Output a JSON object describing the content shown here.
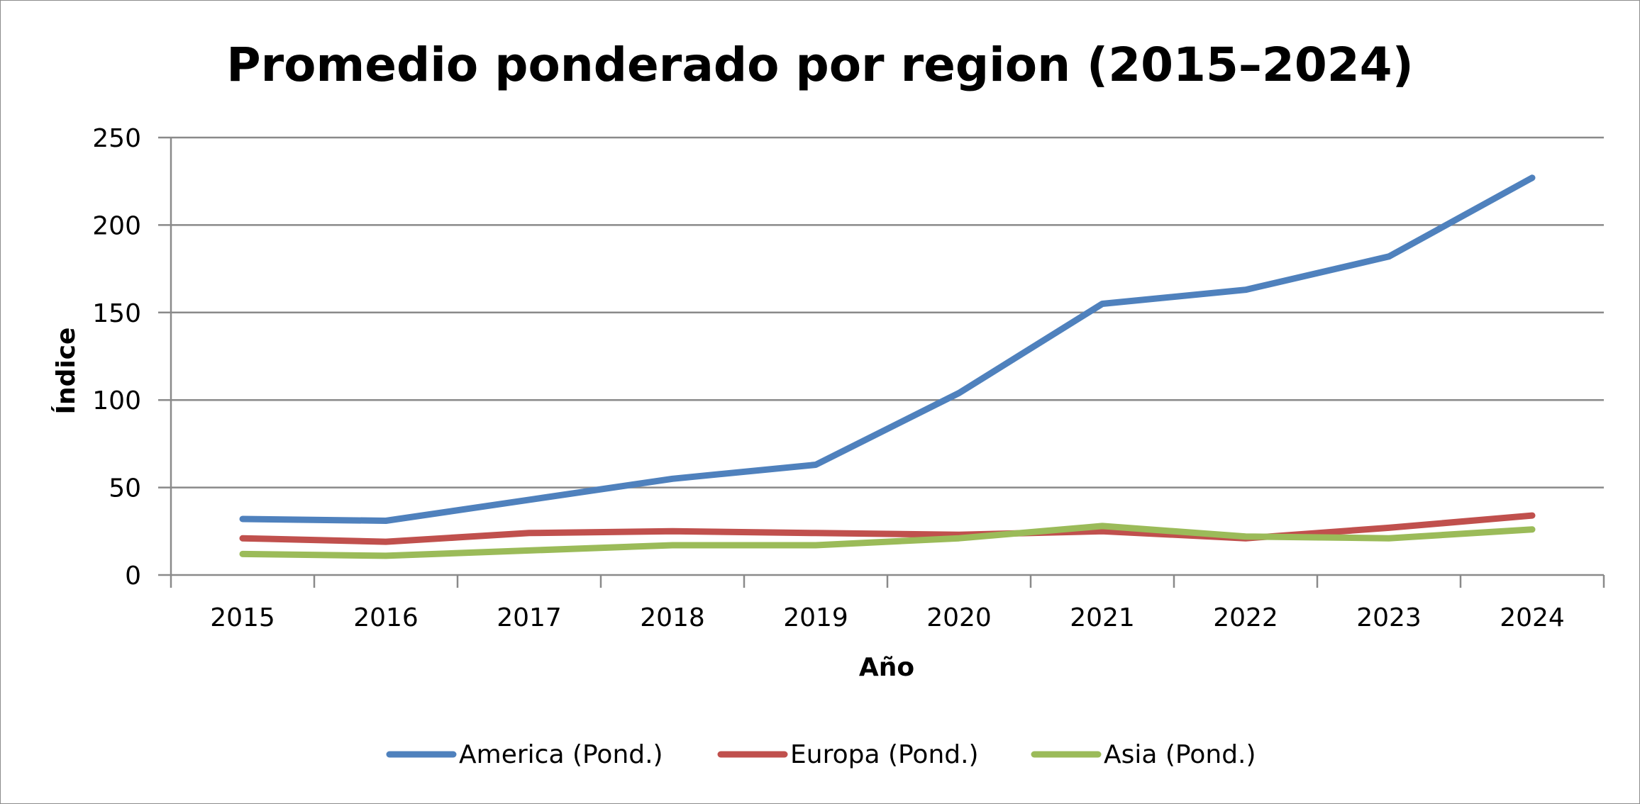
{
  "chart_data": {
    "type": "line",
    "title": "Promedio ponderado por region (2015–2024)",
    "xlabel": "Año",
    "ylabel": "Índice",
    "categories": [
      "2015",
      "2016",
      "2017",
      "2018",
      "2019",
      "2020",
      "2021",
      "2022",
      "2023",
      "2024"
    ],
    "yticks": [
      "0",
      "50",
      "100",
      "150",
      "200",
      "250"
    ],
    "ylim": [
      0,
      250
    ],
    "grid": true,
    "legend": "bottom",
    "series": [
      {
        "name": "America (Pond.)",
        "color": "#4f81bd",
        "values": [
          32,
          31,
          43,
          55,
          63,
          104,
          155,
          163,
          182,
          227
        ]
      },
      {
        "name": "Europa (Pond.)",
        "color": "#c0504d",
        "values": [
          21,
          19,
          24,
          25,
          24,
          23,
          25,
          21,
          27,
          34
        ]
      },
      {
        "name": "Asia (Pond.)",
        "color": "#9bbb59",
        "values": [
          12,
          11,
          14,
          17,
          17,
          21,
          28,
          22,
          21,
          26
        ]
      }
    ]
  }
}
